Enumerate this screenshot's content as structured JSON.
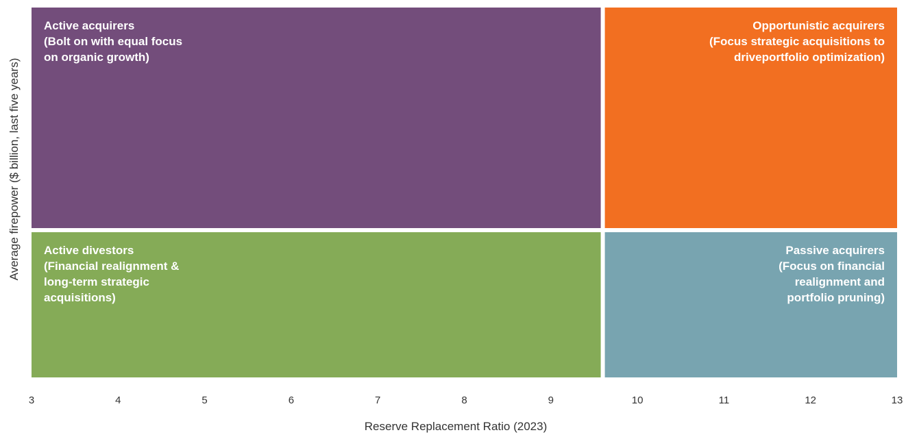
{
  "chart_data": {
    "type": "quadrant",
    "xlabel": "Reserve Replacement Ratio (2023)",
    "ylabel": "Average firepower ($ billion, last five years)",
    "xlim": [
      3,
      13
    ],
    "x_ticks": [
      3,
      4,
      5,
      6,
      7,
      8,
      9,
      10,
      11,
      12,
      13
    ],
    "x_divider": 9.6,
    "grid": false,
    "quadrants": [
      {
        "id": "active-acquirers",
        "position": "top-left",
        "color": "#734D7B",
        "label_lines": [
          "Active acquirers",
          "(Bolt on with equal focus",
          "on organic growth)"
        ]
      },
      {
        "id": "opportunistic-acquirers",
        "position": "top-right",
        "color": "#F26F21",
        "label_lines": [
          "Opportunistic acquirers",
          "(Focus strategic acquisitions to",
          "driveportfolio optimization)"
        ]
      },
      {
        "id": "active-divestors",
        "position": "bottom-left",
        "color": "#85AB57",
        "label_lines": [
          "Active divestors",
          "(Financial realignment &",
          "long-term strategic",
          "acquisitions)"
        ]
      },
      {
        "id": "passive-acquirers",
        "position": "bottom-right",
        "color": "#78A4B0",
        "label_lines": [
          "Passive acquirers",
          "(Focus on financial",
          "realignment and",
          "portfolio pruning)"
        ]
      }
    ]
  }
}
